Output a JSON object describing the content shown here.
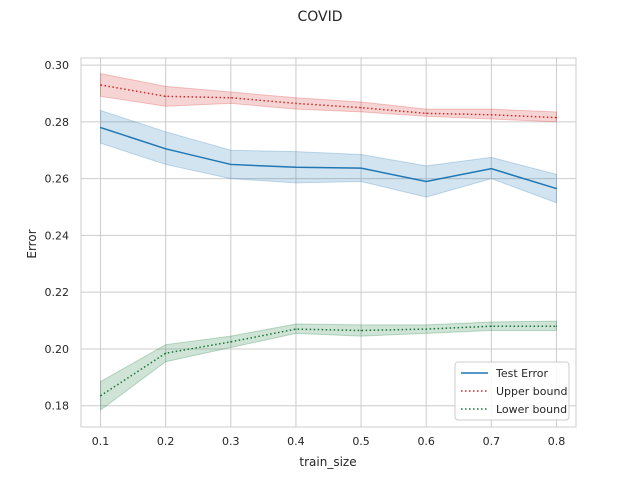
{
  "chart_data": {
    "type": "line",
    "title": "COVID",
    "xlabel": "train_size",
    "ylabel": "Error",
    "x": [
      0.1,
      0.2,
      0.3,
      0.4,
      0.5,
      0.6,
      0.7,
      0.8
    ],
    "xticks": [
      "0.1",
      "0.2",
      "0.3",
      "0.4",
      "0.5",
      "0.6",
      "0.7",
      "0.8"
    ],
    "yticks": [
      "0.18",
      "0.20",
      "0.22",
      "0.24",
      "0.26",
      "0.28",
      "0.30"
    ],
    "xlim": [
      0.07,
      0.83
    ],
    "ylim": [
      0.1725,
      0.3025
    ],
    "grid": true,
    "legend_position": "lower-right",
    "series": [
      {
        "name": "Test Error",
        "color": "#1f77b4",
        "linestyle": "solid",
        "values": [
          0.278,
          0.2705,
          0.265,
          0.264,
          0.2637,
          0.259,
          0.2635,
          0.2565
        ],
        "ci_lower": [
          0.2725,
          0.265,
          0.26,
          0.2585,
          0.259,
          0.2535,
          0.26,
          0.2515
        ],
        "ci_upper": [
          0.284,
          0.2765,
          0.27,
          0.2695,
          0.2685,
          0.2645,
          0.2675,
          0.2615
        ]
      },
      {
        "name": "Upper bound",
        "color": "#d62728",
        "linestyle": "dotted",
        "values": [
          0.293,
          0.289,
          0.2885,
          0.2865,
          0.285,
          0.283,
          0.2825,
          0.2815
        ],
        "ci_lower": [
          0.289,
          0.2855,
          0.2865,
          0.2845,
          0.2835,
          0.282,
          0.281,
          0.28
        ],
        "ci_upper": [
          0.297,
          0.2925,
          0.2905,
          0.2885,
          0.287,
          0.2845,
          0.2845,
          0.2835
        ]
      },
      {
        "name": "Lower bound",
        "color": "#117733",
        "linestyle": "dotted",
        "values": [
          0.1835,
          0.1985,
          0.2025,
          0.207,
          0.2065,
          0.207,
          0.208,
          0.208
        ],
        "ci_lower": [
          0.1785,
          0.1955,
          0.2005,
          0.2055,
          0.2045,
          0.2055,
          0.2065,
          0.2065
        ],
        "ci_upper": [
          0.1885,
          0.2015,
          0.2045,
          0.2088,
          0.2085,
          0.2085,
          0.2095,
          0.2098
        ]
      }
    ]
  }
}
